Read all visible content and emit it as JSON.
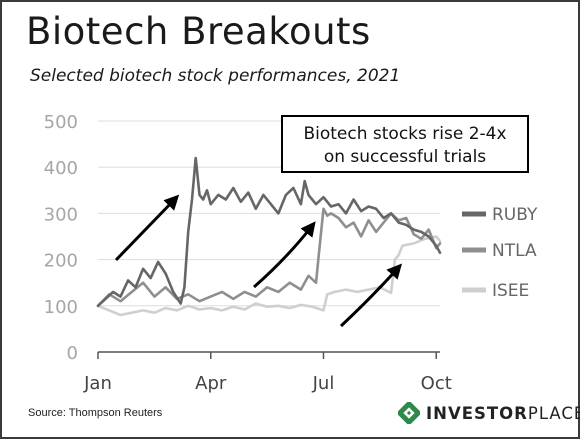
{
  "chart_data": {
    "type": "line",
    "title": "Biotech Breakouts",
    "subtitle": "Selected biotech stock performances, 2021",
    "x_tick_labels": [
      "Jan",
      "Apr",
      "Jul",
      "Oct"
    ],
    "x_ticks": [
      0,
      3,
      6,
      9
    ],
    "xlim": [
      0,
      9.1
    ],
    "y_ticks": [
      0,
      100,
      200,
      300,
      400,
      500
    ],
    "ylim": [
      0,
      500
    ],
    "grid": "horizontal",
    "legend": "right",
    "annotation": "Biotech stocks rise 2-4x on successful trials",
    "annotation_lines": [
      "Biotech stocks rise 2-4x",
      "on successful trials"
    ],
    "series": [
      {
        "name": "RUBY",
        "color": "#666666",
        "x": [
          0,
          0.2,
          0.4,
          0.6,
          0.8,
          1.0,
          1.2,
          1.4,
          1.6,
          1.8,
          2.0,
          2.2,
          2.3,
          2.4,
          2.5,
          2.6,
          2.7,
          2.8,
          2.9,
          3.0,
          3.2,
          3.4,
          3.6,
          3.8,
          4.0,
          4.2,
          4.4,
          4.6,
          4.8,
          5.0,
          5.2,
          5.4,
          5.5,
          5.6,
          5.8,
          6.0,
          6.2,
          6.4,
          6.6,
          6.8,
          7.0,
          7.2,
          7.4,
          7.6,
          7.8,
          8.0,
          8.2,
          8.4,
          8.6,
          8.8,
          9.0,
          9.1
        ],
        "values": [
          100,
          115,
          130,
          120,
          155,
          140,
          180,
          160,
          195,
          170,
          130,
          105,
          140,
          260,
          330,
          420,
          340,
          330,
          350,
          320,
          340,
          330,
          355,
          325,
          345,
          310,
          340,
          320,
          300,
          340,
          355,
          320,
          370,
          340,
          320,
          335,
          315,
          320,
          300,
          330,
          305,
          315,
          310,
          290,
          300,
          280,
          275,
          265,
          260,
          250,
          230,
          215
        ]
      },
      {
        "name": "NTLA",
        "color": "#8f8f8f",
        "x": [
          0,
          0.3,
          0.6,
          0.9,
          1.2,
          1.5,
          1.8,
          2.1,
          2.4,
          2.7,
          3.0,
          3.3,
          3.6,
          3.9,
          4.2,
          4.5,
          4.8,
          5.1,
          5.4,
          5.6,
          5.8,
          5.9,
          6.0,
          6.1,
          6.2,
          6.4,
          6.6,
          6.8,
          7.0,
          7.2,
          7.4,
          7.6,
          7.8,
          8.0,
          8.2,
          8.4,
          8.6,
          8.8,
          9.0,
          9.1
        ],
        "values": [
          100,
          125,
          110,
          130,
          150,
          120,
          140,
          115,
          125,
          110,
          120,
          130,
          115,
          130,
          120,
          140,
          130,
          150,
          135,
          165,
          150,
          230,
          310,
          295,
          300,
          290,
          270,
          280,
          250,
          285,
          260,
          280,
          300,
          285,
          290,
          255,
          245,
          265,
          225,
          235
        ]
      },
      {
        "name": "ISEE",
        "color": "#cfcfcf",
        "x": [
          0,
          0.3,
          0.6,
          0.9,
          1.2,
          1.5,
          1.8,
          2.1,
          2.4,
          2.7,
          3.0,
          3.3,
          3.6,
          3.9,
          4.2,
          4.5,
          4.8,
          5.1,
          5.4,
          5.7,
          6.0,
          6.1,
          6.3,
          6.6,
          6.9,
          7.2,
          7.5,
          7.8,
          7.9,
          8.0,
          8.1,
          8.4,
          8.7,
          9.0,
          9.1
        ],
        "values": [
          100,
          90,
          80,
          85,
          90,
          85,
          95,
          90,
          100,
          92,
          95,
          90,
          98,
          92,
          105,
          98,
          100,
          95,
          102,
          98,
          90,
          125,
          130,
          135,
          130,
          135,
          140,
          128,
          200,
          210,
          230,
          235,
          245,
          250,
          240
        ]
      }
    ],
    "source": "Source: Thompson Reuters"
  },
  "brand": {
    "strong": "INVESTOR",
    "rest": "PLACE"
  }
}
